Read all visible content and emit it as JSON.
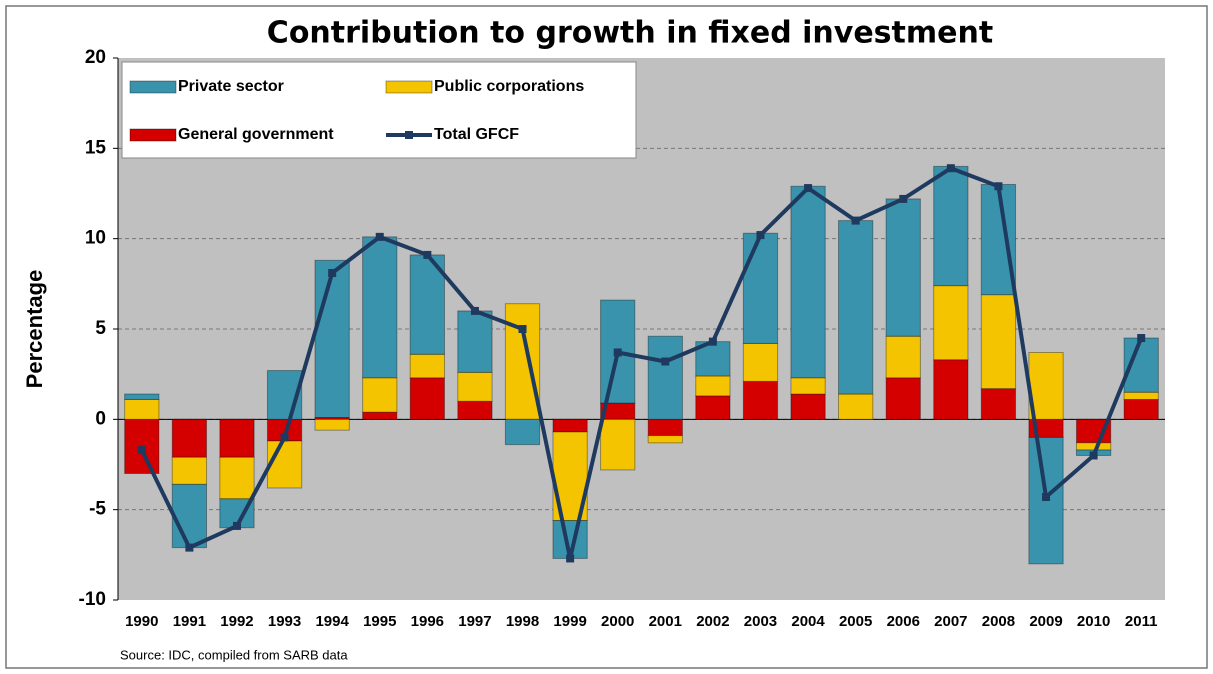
{
  "chart_data": {
    "type": "bar",
    "title": "Contribution to growth in fixed investment",
    "y_label": "Percentage",
    "source": "Source: IDC, compiled from SARB data",
    "categories": [
      "1990",
      "1991",
      "1992",
      "1993",
      "1994",
      "1995",
      "1996",
      "1997",
      "1998",
      "1999",
      "2000",
      "2001",
      "2002",
      "2003",
      "2004",
      "2005",
      "2006",
      "2007",
      "2008",
      "2009",
      "2010",
      "2011"
    ],
    "series": [
      {
        "name": "Private sector",
        "type": "bar",
        "color": "#3a93ad",
        "values": [
          0.3,
          -3.5,
          -1.6,
          2.7,
          8.7,
          7.8,
          5.5,
          3.4,
          -1.4,
          -2.1,
          5.7,
          4.6,
          1.9,
          6.1,
          10.6,
          9.6,
          7.6,
          6.6,
          6.1,
          -7.0,
          -0.3,
          3.0
        ]
      },
      {
        "name": "Public corporations",
        "type": "bar",
        "color": "#f5c400",
        "values": [
          1.1,
          -1.5,
          -2.3,
          -2.6,
          -0.6,
          1.9,
          1.3,
          1.6,
          6.4,
          -4.9,
          -2.8,
          -0.4,
          1.1,
          2.1,
          0.9,
          1.4,
          2.3,
          4.1,
          5.2,
          3.7,
          -0.4,
          0.4
        ]
      },
      {
        "name": "General government",
        "type": "bar",
        "color": "#d40000",
        "values": [
          -3.0,
          -2.1,
          -2.1,
          -1.2,
          0.1,
          0.4,
          2.3,
          1.0,
          0.0,
          -0.7,
          0.9,
          -0.9,
          1.3,
          2.1,
          1.4,
          0.0,
          2.3,
          3.3,
          1.7,
          -1.0,
          -1.3,
          1.1
        ]
      },
      {
        "name": "Total GFCF",
        "type": "line",
        "color": "#1f3a5f",
        "values": [
          -1.7,
          -7.1,
          -5.9,
          -1.0,
          8.1,
          10.1,
          9.1,
          6.0,
          5.0,
          -7.7,
          3.7,
          3.2,
          4.3,
          10.2,
          12.8,
          11.0,
          12.2,
          13.9,
          12.9,
          -4.3,
          -2.0,
          4.5
        ]
      }
    ],
    "ylim": [
      -10,
      20
    ],
    "yticks": [
      -10,
      -5,
      0,
      5,
      10,
      15,
      20
    ],
    "grid": true,
    "legend": "top-left"
  }
}
